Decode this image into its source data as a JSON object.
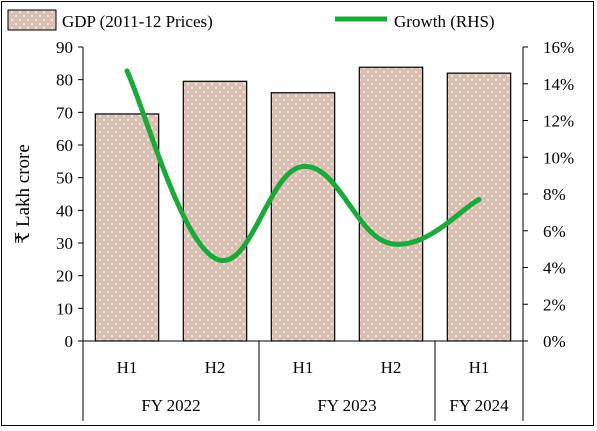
{
  "chart_data": {
    "type": "bar",
    "categories": [
      "H1",
      "H2",
      "H1",
      "H2",
      "H1"
    ],
    "groups": [
      {
        "label": "FY 2022",
        "span": 2
      },
      {
        "label": "FY 2023",
        "span": 2
      },
      {
        "label": "FY 2024",
        "span": 1
      }
    ],
    "ylabel": "₹ Lakh crore",
    "ylim": [
      0,
      90
    ],
    "y_ticks": [
      0,
      10,
      20,
      30,
      40,
      50,
      60,
      70,
      80,
      90
    ],
    "y2lim": [
      0,
      16
    ],
    "y2_ticks": [
      "0%",
      "2%",
      "4%",
      "6%",
      "8%",
      "10%",
      "12%",
      "14%",
      "16%"
    ],
    "series": [
      {
        "name": "GDP (2011-12 Prices)",
        "type": "bar",
        "axis": "left",
        "values": [
          69.5,
          79.5,
          76.0,
          83.8,
          82.0
        ],
        "color": "#d9c0b3"
      },
      {
        "name": "Growth (RHS)",
        "type": "line",
        "axis": "right",
        "values": [
          14.7,
          4.5,
          9.5,
          5.3,
          7.7
        ],
        "color": "#1aaa3a"
      }
    ],
    "legend": "top",
    "grid": false
  }
}
